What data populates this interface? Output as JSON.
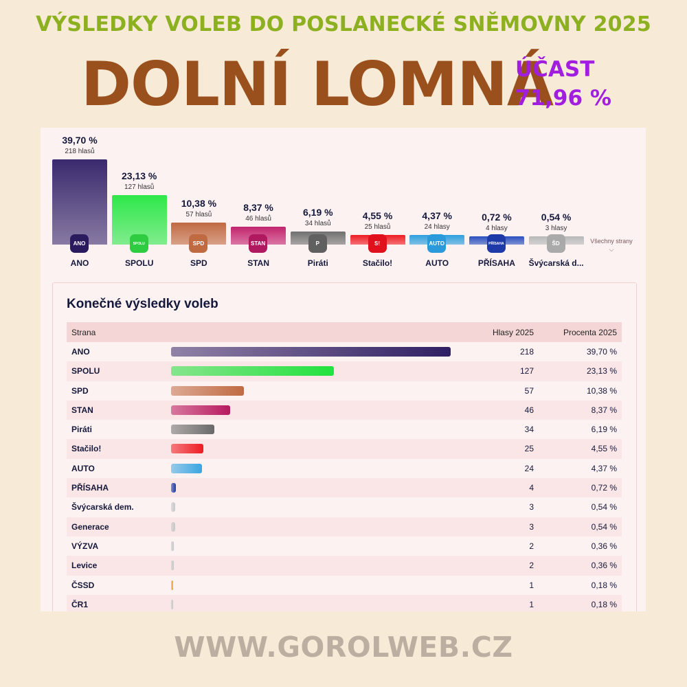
{
  "header": {
    "title": "VÝSLEDKY VOLEB DO POSLANECKÉ SNĚMOVNY 2025",
    "town": "DOLNÍ LOMNÁ",
    "turnout_label": "ÚČAST",
    "turnout_value": "71,96 %"
  },
  "colors": {
    "title": "#8db021",
    "town": "#9a501d",
    "turnout": "#a11ee0",
    "footer": "#bcaea0"
  },
  "chart_data": [
    {
      "type": "bar",
      "title": "",
      "categories": [
        "ANO",
        "SPOLU",
        "SPD",
        "STAN",
        "Piráti",
        "Stačilo!",
        "AUTO",
        "PŘÍSAHA",
        "Švýcarská d..."
      ],
      "values": [
        39.7,
        23.13,
        10.38,
        8.37,
        6.19,
        4.55,
        4.37,
        0.72,
        0.54
      ],
      "value_labels": [
        "39,70 %",
        "23,13 %",
        "10,38 %",
        "8,37 %",
        "6,19 %",
        "4,55 %",
        "4,37 %",
        "0,72 %",
        "0,54 %"
      ],
      "vote_labels": [
        "218 hlasů",
        "127 hlasů",
        "57 hlasů",
        "46 hlasů",
        "34 hlasů",
        "25 hlasů",
        "24 hlasy",
        "4 hlasy",
        "3 hlasy"
      ],
      "logo_texts": [
        "ANO",
        "SPOLU",
        "SPD",
        "STAN",
        "P",
        "S!",
        "AUTO",
        "PŘÍSAHA",
        "ŠD"
      ],
      "colors": [
        "#3a2a6e",
        "#2ee84a",
        "#c06a42",
        "#c2246e",
        "#707070",
        "#ee1c22",
        "#2e9fde",
        "#2b4fc0",
        "#b9b9b9"
      ],
      "logo_colors": [
        "#2a1a5e",
        "#2ecc40",
        "#c06a42",
        "#b0195f",
        "#606060",
        "#e0101c",
        "#2a9adb",
        "#1e3aa8",
        "#aaaaaa"
      ],
      "more_label": "Všechny strany",
      "ylim": [
        0,
        40
      ]
    },
    {
      "type": "table",
      "title": "Konečné výsledky voleb",
      "columns": [
        "Strana",
        "Hlasy 2025",
        "Procenta 2025"
      ],
      "rows": [
        {
          "party": "ANO",
          "votes": 218,
          "percent": "39,70 %",
          "color": "#2f1f63"
        },
        {
          "party": "SPOLU",
          "votes": 127,
          "percent": "23,13 %",
          "color": "#22e23e"
        },
        {
          "party": "SPD",
          "votes": 57,
          "percent": "10,38 %",
          "color": "#c06a42"
        },
        {
          "party": "STAN",
          "votes": 46,
          "percent": "8,37 %",
          "color": "#b8195f"
        },
        {
          "party": "Piráti",
          "votes": 34,
          "percent": "6,19 %",
          "color": "#6a6a6a"
        },
        {
          "party": "Stačilo!",
          "votes": 25,
          "percent": "4,55 %",
          "color": "#ee1c22"
        },
        {
          "party": "AUTO",
          "votes": 24,
          "percent": "4,37 %",
          "color": "#3aa6e2"
        },
        {
          "party": "PŘÍSAHA",
          "votes": 4,
          "percent": "0,72 %",
          "color": "#1e3aa8"
        },
        {
          "party": "Švýcarská dem.",
          "votes": 3,
          "percent": "0,54 %",
          "color": "#c4c8c8"
        },
        {
          "party": "Generace",
          "votes": 3,
          "percent": "0,54 %",
          "color": "#c4c8c8"
        },
        {
          "party": "VÝZVA",
          "votes": 2,
          "percent": "0,36 %",
          "color": "#c4c8c8"
        },
        {
          "party": "Levice",
          "votes": 2,
          "percent": "0,36 %",
          "color": "#c4c8c8"
        },
        {
          "party": "ČSSD",
          "votes": 1,
          "percent": "0,18 %",
          "color": "#f0a040"
        },
        {
          "party": "ČR1",
          "votes": 1,
          "percent": "0,18 %",
          "color": "#c4c8c8"
        }
      ]
    }
  ],
  "footer": {
    "site": "WWW.GOROLWEB.CZ"
  }
}
